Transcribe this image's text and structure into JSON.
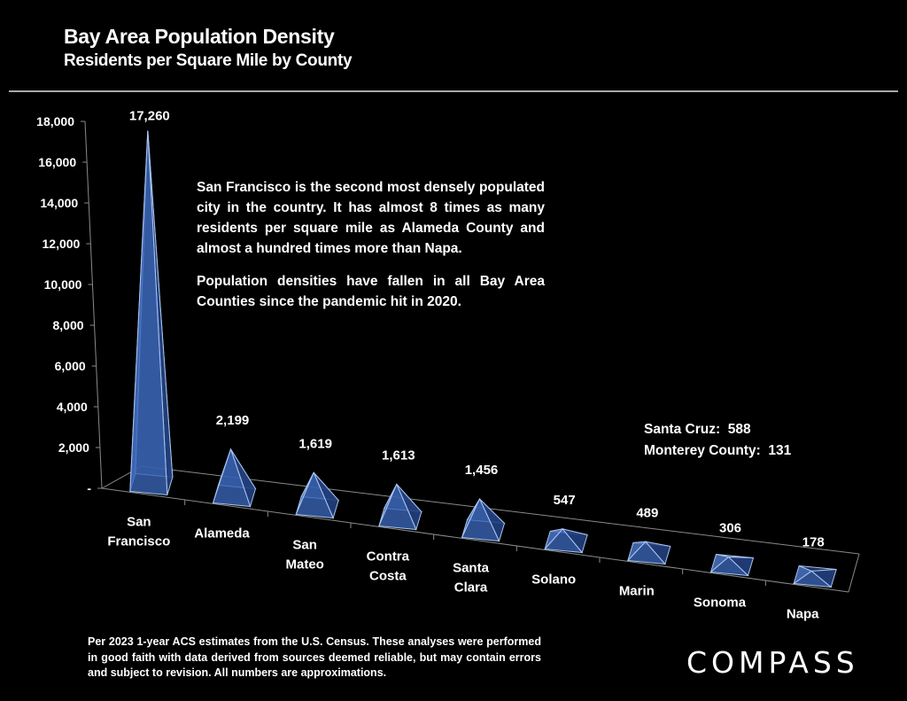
{
  "header": {
    "title": "Bay Area Population Density",
    "subtitle": "Residents per Square Mile by County"
  },
  "callout": {
    "paragraphs": [
      "San Francisco is the second most densely populated city in the country. It has almost 8 times as many residents per square mile as Alameda County and almost a hundred times more than Napa.",
      "Population densities have fallen in all Bay Area Counties since the pandemic hit in 2020."
    ]
  },
  "aside": {
    "lines": [
      "Santa Cruz:  588",
      "Monterey County:  131"
    ]
  },
  "footnote": "Per 2023 1-year ACS estimates from the U.S. Census. These analyses were performed in good faith with data derived from sources deemed reliable, but may contain errors and subject to revision. All numbers are approximations.",
  "brand": {
    "logo_text": "COMPASS"
  },
  "colors": {
    "pyramid_fill": "#3a64b4",
    "pyramid_edge": "#a9c4f0",
    "axis": "#8a8a8a"
  },
  "chart_data": {
    "type": "bar",
    "style": "3d-pyramid",
    "title": "Bay Area Population Density",
    "subtitle": "Residents per Square Mile by County",
    "xlabel": "",
    "ylabel": "",
    "ylim": [
      0,
      18000
    ],
    "yticks": [
      0,
      2000,
      4000,
      6000,
      8000,
      10000,
      12000,
      14000,
      16000,
      18000
    ],
    "ytick_labels": [
      "-",
      "2,000",
      "4,000",
      "6,000",
      "8,000",
      "10,000",
      "12,000",
      "14,000",
      "16,000",
      "18,000"
    ],
    "grid": false,
    "categories": [
      [
        "San",
        "Francisco"
      ],
      [
        "Alameda"
      ],
      [
        "San",
        "Mateo"
      ],
      [
        "Contra",
        "Costa"
      ],
      [
        "Santa",
        "Clara"
      ],
      [
        "Solano"
      ],
      [
        "Marin"
      ],
      [
        "Sonoma"
      ],
      [
        "Napa"
      ]
    ],
    "values": [
      17260,
      2199,
      1619,
      1613,
      1456,
      547,
      489,
      306,
      178
    ],
    "value_labels": [
      "17,260",
      "2,199",
      "1,619",
      "1,613",
      "1,456",
      "547",
      "489",
      "306",
      "178"
    ]
  }
}
